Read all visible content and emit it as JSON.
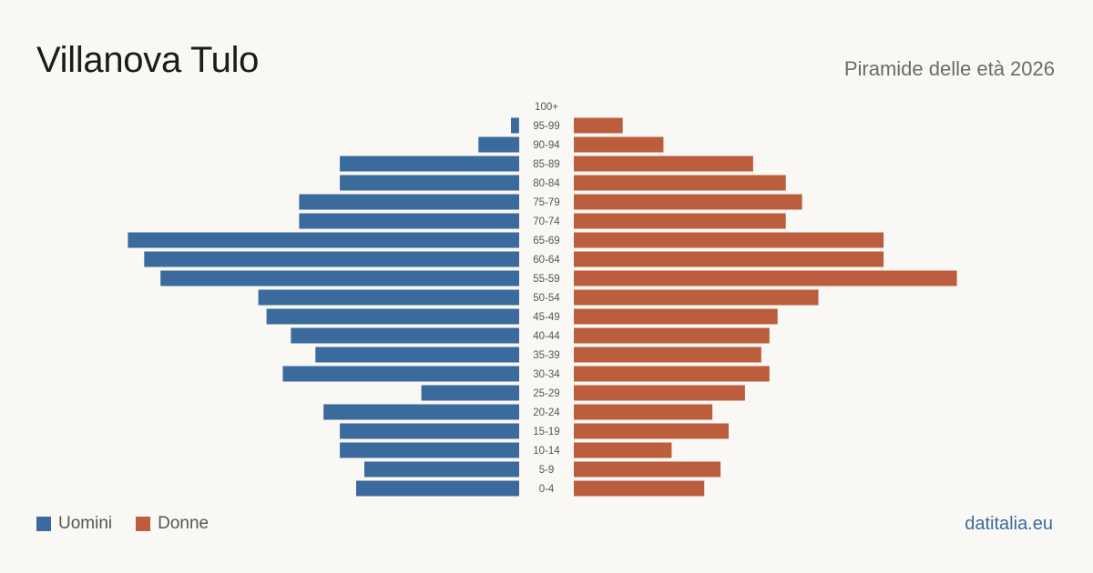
{
  "header": {
    "title": "Villanova Tulo",
    "subtitle": "Piramide delle età 2026"
  },
  "legend": {
    "men_label": "Uomini",
    "women_label": "Donne"
  },
  "brand": "datitalia.eu",
  "colors": {
    "men": "#3b6a9c",
    "women": "#bc5e3e",
    "background": "#faf8f4"
  },
  "chart_data": {
    "type": "bar",
    "orientation": "horizontal-pyramid",
    "categories": [
      "100+",
      "95-99",
      "90-94",
      "85-89",
      "80-84",
      "75-79",
      "70-74",
      "65-69",
      "60-64",
      "55-59",
      "50-54",
      "45-49",
      "40-44",
      "35-39",
      "30-34",
      "25-29",
      "20-24",
      "15-19",
      "10-14",
      "5-9",
      "0-4"
    ],
    "series": [
      {
        "name": "Uomini",
        "values": [
          0,
          1,
          5,
          22,
          22,
          27,
          27,
          48,
          46,
          44,
          32,
          31,
          28,
          25,
          29,
          12,
          24,
          22,
          22,
          19,
          20
        ]
      },
      {
        "name": "Donne",
        "values": [
          0,
          6,
          11,
          22,
          26,
          28,
          26,
          38,
          38,
          47,
          30,
          25,
          24,
          23,
          24,
          21,
          17,
          19,
          12,
          18,
          16
        ]
      }
    ],
    "legend_position": "bottom-left",
    "grid": false
  }
}
